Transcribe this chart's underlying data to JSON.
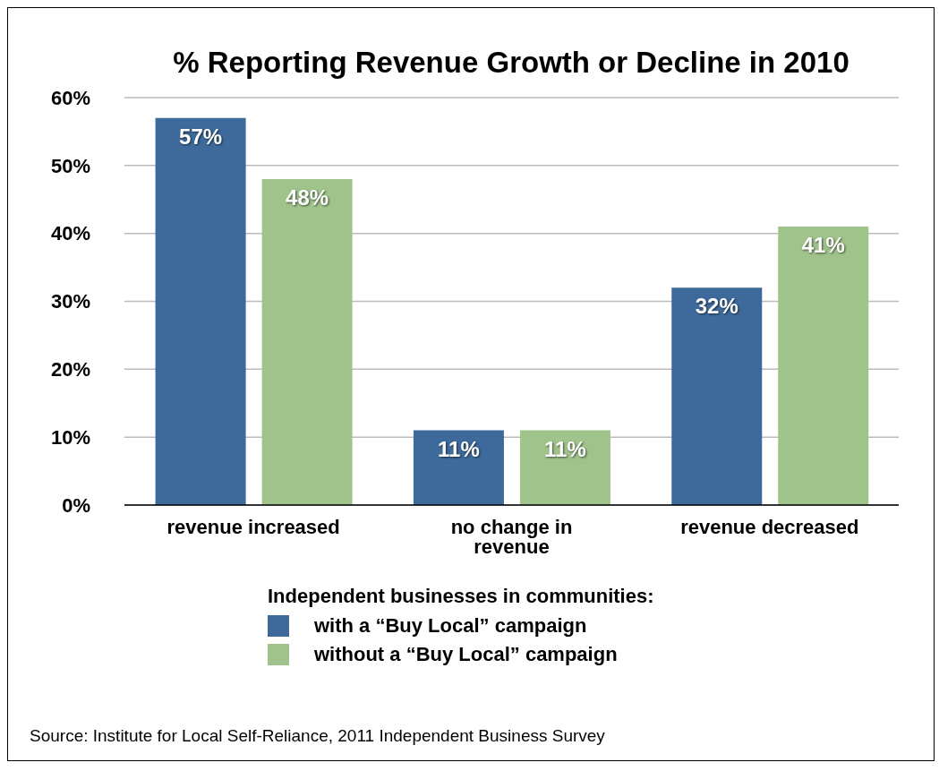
{
  "chart_data": {
    "type": "bar",
    "title": "% Reporting Revenue Growth or Decline in 2010",
    "categories": [
      "revenue increased",
      "no change in revenue",
      "revenue decreased"
    ],
    "series": [
      {
        "name": "with a “Buy Local” campaign",
        "color": "#3d6a9b",
        "values": [
          57,
          11,
          32
        ],
        "value_labels": [
          "57%",
          "11%",
          "32%"
        ]
      },
      {
        "name": "without a “Buy Local” campaign",
        "color": "#9fc38a",
        "values": [
          48,
          11,
          41
        ],
        "value_labels": [
          "48%",
          "11%",
          "41%"
        ]
      }
    ],
    "ylim": [
      0,
      60
    ],
    "yticks": [
      {
        "value": 0,
        "label": "0%"
      },
      {
        "value": 10,
        "label": "10%"
      },
      {
        "value": 20,
        "label": "20%"
      },
      {
        "value": 30,
        "label": "30%"
      },
      {
        "value": 40,
        "label": "40%"
      },
      {
        "value": 50,
        "label": "50%"
      },
      {
        "value": 60,
        "label": "60%"
      }
    ],
    "grid": "y",
    "legend": "bottom",
    "legend_title": "Independent businesses in communities:",
    "annotations": [
      "Source: Institute for Local Self-Reliance, 2011 Independent Business Survey"
    ]
  }
}
